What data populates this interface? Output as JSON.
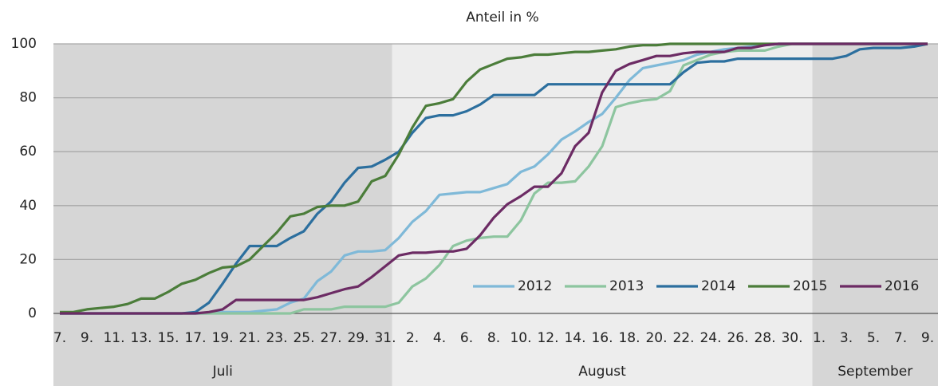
{
  "chart_data": {
    "type": "line",
    "title": "Anteil in %",
    "categories": [
      "7.",
      null,
      "9.",
      null,
      "11.",
      null,
      "13.",
      null,
      "15.",
      null,
      "17.",
      null,
      "19.",
      null,
      "21.",
      null,
      "23.",
      null,
      "25.",
      null,
      "27.",
      null,
      "29.",
      null,
      "31.",
      null,
      "2.",
      null,
      "4.",
      null,
      "6.",
      null,
      "8.",
      null,
      "10.",
      null,
      "12.",
      null,
      "14.",
      null,
      "16.",
      null,
      "18.",
      null,
      "20.",
      null,
      "22.",
      null,
      "24.",
      null,
      "26.",
      null,
      "28.",
      null,
      "30.",
      null,
      "1.",
      null,
      "3.",
      null,
      "5.",
      null,
      "7.",
      null,
      "9."
    ],
    "months": [
      "Juli",
      "August",
      "September"
    ],
    "series": [
      {
        "name": "2012",
        "color": "#7fb9d8",
        "values": [
          0,
          0,
          0,
          0,
          0,
          0,
          0,
          0,
          0,
          0,
          0,
          0,
          0.5,
          0.5,
          0.5,
          1,
          1.5,
          4,
          5.5,
          12,
          15.5,
          21.5,
          23,
          23,
          23.5,
          28,
          34,
          38,
          44,
          44.5,
          45,
          45,
          46.5,
          48,
          52.5,
          54.5,
          59,
          64.5,
          67.5,
          71,
          74,
          80,
          86.5,
          91,
          92,
          93,
          94,
          96,
          97,
          98,
          98.5,
          99,
          99.5,
          100,
          100,
          100,
          100,
          100,
          100,
          100,
          100,
          100,
          100,
          100,
          100
        ]
      },
      {
        "name": "2013",
        "color": "#8dc59f",
        "values": [
          0,
          0,
          0,
          0,
          0,
          0,
          0,
          0,
          0,
          0,
          0,
          0,
          0,
          0,
          0,
          0,
          0,
          0,
          1.5,
          1.5,
          1.5,
          2.5,
          2.5,
          2.5,
          2.5,
          4,
          10,
          13,
          18,
          25,
          27,
          28,
          28.5,
          28.5,
          34.5,
          44.5,
          48.5,
          48.5,
          49,
          54.5,
          62,
          76.5,
          78,
          79,
          79.5,
          82.5,
          92,
          94,
          96,
          97,
          97.5,
          97.5,
          97.5,
          99,
          100,
          100,
          100,
          100,
          100,
          100,
          100,
          100,
          100,
          100,
          100
        ]
      },
      {
        "name": "2014",
        "color": "#2c6f9e",
        "values": [
          0,
          0,
          0,
          0,
          0,
          0,
          0,
          0,
          0,
          0,
          0.5,
          4,
          11,
          18.5,
          25,
          25,
          25,
          28,
          30.5,
          37,
          41.5,
          48.5,
          54,
          54.5,
          57,
          60,
          67,
          72.5,
          73.5,
          73.5,
          75,
          77.5,
          81,
          81,
          81,
          81,
          85,
          85,
          85,
          85,
          85,
          85,
          85,
          85,
          85,
          85,
          89.5,
          93,
          93.5,
          93.5,
          94.5,
          94.5,
          94.5,
          94.5,
          94.5,
          94.5,
          94.5,
          94.5,
          95.5,
          98,
          98.5,
          98.5,
          98.5,
          99,
          100
        ]
      },
      {
        "name": "2015",
        "color": "#4b7d3a",
        "values": [
          0.5,
          0.5,
          1.5,
          2,
          2.5,
          3.5,
          5.5,
          5.5,
          8,
          11,
          12.5,
          15,
          17,
          17.5,
          20,
          25,
          30,
          36,
          37,
          39.5,
          40,
          40,
          41.5,
          49,
          51,
          59,
          69,
          77,
          78,
          79.5,
          86,
          90.5,
          92.5,
          94.5,
          95,
          96,
          96,
          96.5,
          97,
          97,
          97.5,
          98,
          99,
          99.5,
          99.5,
          100,
          100,
          100,
          100,
          100,
          100,
          100,
          100,
          100,
          100,
          100,
          100,
          100,
          100,
          100,
          100,
          100,
          100,
          100,
          100
        ]
      },
      {
        "name": "2016",
        "color": "#6c2b64",
        "values": [
          0,
          0,
          0,
          0,
          0,
          0,
          0,
          0,
          0,
          0,
          0,
          0.5,
          1.5,
          5,
          5,
          5,
          5,
          5,
          5,
          6,
          7.5,
          9,
          10,
          13.5,
          17.5,
          21.5,
          22.5,
          22.5,
          23,
          23,
          24,
          29,
          35.5,
          40.5,
          43.5,
          47,
          47,
          52,
          62,
          67,
          82,
          90,
          92.5,
          94,
          95.5,
          95.5,
          96.5,
          97,
          97,
          97,
          98.5,
          98.5,
          99.5,
          100,
          100,
          100,
          100,
          100,
          100,
          100,
          100,
          100,
          100,
          100,
          100
        ]
      }
    ],
    "ylim": [
      0,
      100
    ],
    "yticks": [
      0,
      20,
      40,
      60,
      80,
      100
    ],
    "grid": true,
    "legend": "lower right"
  }
}
